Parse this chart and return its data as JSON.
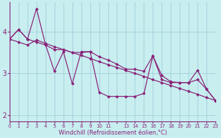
{
  "xlabel": "Windchill (Refroidissement éolien,°C)",
  "background_color": "#c8eef0",
  "line_color": "#882277",
  "grid_color": "#a0ced8",
  "xtick_labels": [
    "0",
    "1",
    "2",
    "3",
    "4",
    "5",
    "6",
    "7",
    "8",
    "9",
    "10",
    "11",
    "",
    "13",
    "14",
    "15",
    "16",
    "17",
    "18",
    "19",
    "20",
    "21",
    "22",
    "23"
  ],
  "xlim": [
    0,
    23
  ],
  "ylim": [
    1.85,
    4.7
  ],
  "yticks": [
    2,
    3,
    4
  ],
  "series1": [
    3.82,
    4.05,
    3.82,
    4.55,
    3.7,
    3.05,
    3.52,
    2.75,
    3.52,
    3.52,
    2.55,
    2.45,
    2.45,
    2.45,
    2.45,
    2.52,
    3.42,
    2.85,
    2.78,
    2.78,
    2.78,
    3.08,
    2.62,
    2.35
  ],
  "series2": [
    3.82,
    3.75,
    3.68,
    3.8,
    3.72,
    3.64,
    3.57,
    3.5,
    3.43,
    3.36,
    3.28,
    3.21,
    3.14,
    3.07,
    3.0,
    2.93,
    2.85,
    2.78,
    2.71,
    2.64,
    2.57,
    2.5,
    2.42,
    2.35
  ],
  "series3": [
    3.82,
    4.05,
    3.82,
    3.75,
    3.68,
    3.57,
    3.57,
    3.5,
    3.5,
    3.52,
    3.4,
    3.32,
    3.22,
    3.1,
    3.1,
    3.05,
    3.42,
    2.95,
    2.8,
    2.78,
    2.78,
    2.85,
    2.62,
    2.35
  ]
}
